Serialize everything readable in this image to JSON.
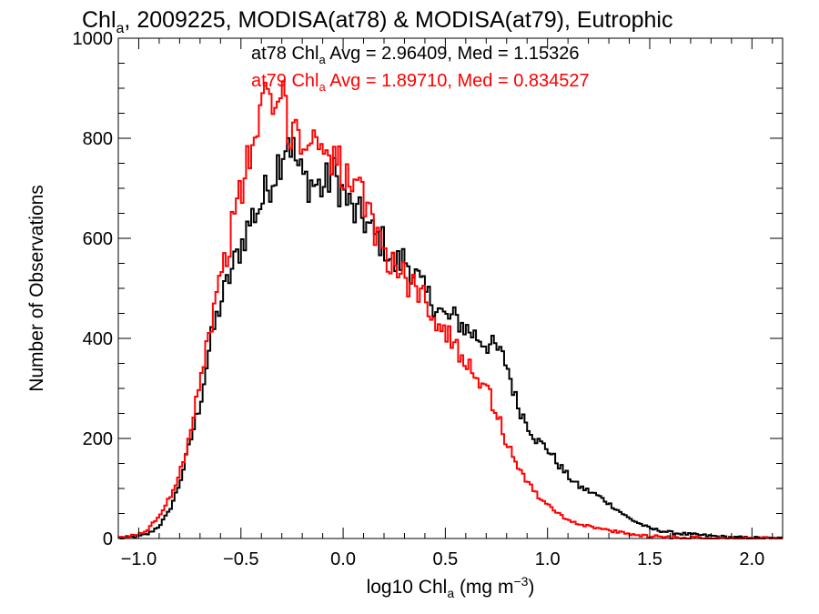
{
  "chart_data": {
    "type": "line",
    "step": true,
    "title": {
      "prefix": "Chl",
      "subscript": "a",
      "rest": ", 2009225, MODISA(at78) & MODISA(at79), Eutrophic"
    },
    "xlabel": {
      "prefix": "log10 Chl",
      "subscript": "a",
      "middle": " (mg m",
      "superscript": "−3",
      "suffix": ")"
    },
    "ylabel": "Number of Observations",
    "xlim": [
      -1.1,
      2.15
    ],
    "ylim": [
      0,
      1000
    ],
    "xticks": [
      -1.0,
      -0.5,
      0.0,
      0.5,
      1.0,
      1.5,
      2.0
    ],
    "xtick_labels": [
      "−1.0",
      "−0.5",
      "0.0",
      "0.5",
      "1.0",
      "1.5",
      "2.0"
    ],
    "yticks": [
      0,
      200,
      400,
      600,
      800,
      1000
    ],
    "ytick_labels": [
      "0",
      "200",
      "400",
      "600",
      "800",
      "1000"
    ],
    "grid": false,
    "annotations": [
      {
        "id": "at78",
        "color": "#000000",
        "prefix": "at78 Chl",
        "subscript": "a",
        "rest": " Avg = 2.96409, Med = 1.15326"
      },
      {
        "id": "at79",
        "color": "#ff0000",
        "prefix": "at79 Chl",
        "subscript": "a",
        "rest": " Avg = 1.89710, Med = 0.834527"
      }
    ],
    "series": [
      {
        "id": "at78",
        "color": "#000000",
        "points": [
          [
            -1.1,
            0
          ],
          [
            -1.0,
            4
          ],
          [
            -0.95,
            10
          ],
          [
            -0.9,
            25
          ],
          [
            -0.85,
            55
          ],
          [
            -0.8,
            110
          ],
          [
            -0.75,
            190
          ],
          [
            -0.7,
            270
          ],
          [
            -0.65,
            390
          ],
          [
            -0.6,
            470
          ],
          [
            -0.55,
            530
          ],
          [
            -0.5,
            585
          ],
          [
            -0.45,
            640
          ],
          [
            -0.4,
            670
          ],
          [
            -0.35,
            720
          ],
          [
            -0.3,
            770
          ],
          [
            -0.27,
            810
          ],
          [
            -0.25,
            780
          ],
          [
            -0.2,
            720
          ],
          [
            -0.15,
            710
          ],
          [
            -0.1,
            700
          ],
          [
            -0.05,
            730
          ],
          [
            0.0,
            690
          ],
          [
            0.05,
            650
          ],
          [
            0.1,
            640
          ],
          [
            0.15,
            605
          ],
          [
            0.2,
            590
          ],
          [
            0.25,
            545
          ],
          [
            0.3,
            560
          ],
          [
            0.35,
            530
          ],
          [
            0.4,
            490
          ],
          [
            0.45,
            470
          ],
          [
            0.5,
            440
          ],
          [
            0.55,
            440
          ],
          [
            0.6,
            420
          ],
          [
            0.65,
            405
          ],
          [
            0.7,
            390
          ],
          [
            0.75,
            380
          ],
          [
            0.8,
            350
          ],
          [
            0.85,
            270
          ],
          [
            0.9,
            230
          ],
          [
            0.95,
            195
          ],
          [
            1.0,
            180
          ],
          [
            1.05,
            150
          ],
          [
            1.1,
            125
          ],
          [
            1.15,
            105
          ],
          [
            1.2,
            95
          ],
          [
            1.25,
            85
          ],
          [
            1.3,
            70
          ],
          [
            1.35,
            55
          ],
          [
            1.4,
            40
          ],
          [
            1.45,
            30
          ],
          [
            1.5,
            20
          ],
          [
            1.6,
            12
          ],
          [
            1.7,
            8
          ],
          [
            1.8,
            5
          ],
          [
            1.9,
            2
          ],
          [
            2.0,
            1
          ],
          [
            2.15,
            0
          ]
        ]
      },
      {
        "id": "at79",
        "color": "#ff0000",
        "points": [
          [
            -1.1,
            0
          ],
          [
            -1.0,
            8
          ],
          [
            -0.95,
            20
          ],
          [
            -0.9,
            45
          ],
          [
            -0.85,
            80
          ],
          [
            -0.8,
            130
          ],
          [
            -0.75,
            210
          ],
          [
            -0.7,
            320
          ],
          [
            -0.65,
            420
          ],
          [
            -0.6,
            520
          ],
          [
            -0.55,
            610
          ],
          [
            -0.5,
            690
          ],
          [
            -0.45,
            780
          ],
          [
            -0.4,
            850
          ],
          [
            -0.37,
            880
          ],
          [
            -0.33,
            860
          ],
          [
            -0.3,
            870
          ],
          [
            -0.25,
            820
          ],
          [
            -0.2,
            800
          ],
          [
            -0.15,
            790
          ],
          [
            -0.1,
            795
          ],
          [
            -0.05,
            770
          ],
          [
            0.0,
            730
          ],
          [
            0.05,
            700
          ],
          [
            0.1,
            670
          ],
          [
            0.15,
            620
          ],
          [
            0.2,
            580
          ],
          [
            0.25,
            545
          ],
          [
            0.3,
            520
          ],
          [
            0.35,
            500
          ],
          [
            0.4,
            485
          ],
          [
            0.45,
            440
          ],
          [
            0.5,
            410
          ],
          [
            0.55,
            385
          ],
          [
            0.6,
            360
          ],
          [
            0.65,
            330
          ],
          [
            0.7,
            300
          ],
          [
            0.75,
            255
          ],
          [
            0.8,
            190
          ],
          [
            0.85,
            150
          ],
          [
            0.9,
            115
          ],
          [
            0.95,
            85
          ],
          [
            1.0,
            70
          ],
          [
            1.05,
            50
          ],
          [
            1.1,
            38
          ],
          [
            1.15,
            30
          ],
          [
            1.2,
            25
          ],
          [
            1.25,
            20
          ],
          [
            1.3,
            16
          ],
          [
            1.35,
            12
          ],
          [
            1.4,
            9
          ],
          [
            1.5,
            5
          ],
          [
            1.6,
            3
          ],
          [
            1.7,
            2
          ],
          [
            1.8,
            1
          ],
          [
            1.9,
            0
          ],
          [
            2.15,
            0
          ]
        ]
      }
    ]
  }
}
